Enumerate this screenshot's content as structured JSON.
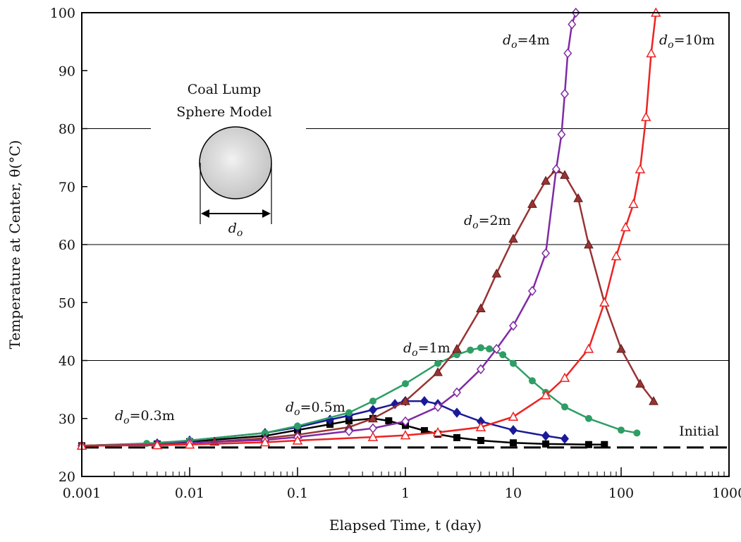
{
  "chart_data": {
    "type": "scatter",
    "title": "",
    "xlabel": "Elapsed Time, t (day)",
    "ylabel": "Temperature at Center, θ(°C)",
    "x_scale": "log",
    "xlim": [
      0.001,
      1000
    ],
    "ylim": [
      20,
      100
    ],
    "x_ticks": [
      0.001,
      0.01,
      0.1,
      1,
      10,
      100,
      1000
    ],
    "x_tick_labels": [
      "0.001",
      "0.01",
      "0.1",
      "1",
      "10",
      "100",
      "1000"
    ],
    "y_ticks": [
      20,
      30,
      40,
      50,
      60,
      70,
      80,
      90,
      100
    ],
    "y_tick_labels": [
      "20",
      "30",
      "40",
      "50",
      "60",
      "70",
      "80",
      "90",
      "100"
    ],
    "y_gridlines": [
      40,
      60,
      80
    ],
    "inset": {
      "title_line1": "Coal Lump",
      "title_line2": "Sphere Model",
      "dimension_label": "d",
      "dimension_sub": "o"
    },
    "reference_line": {
      "label": "Initial",
      "y": 25,
      "style": "dashed",
      "color": "#000000"
    },
    "series": [
      {
        "name_main": "d",
        "name_sub": "o",
        "name_rest": "=0.3m",
        "color": "#000000",
        "marker": "square",
        "x": [
          0.001,
          0.005,
          0.01,
          0.05,
          0.1,
          0.2,
          0.3,
          0.5,
          0.7,
          1,
          1.5,
          2,
          3,
          5,
          10,
          20,
          50,
          70
        ],
        "y": [
          25.3,
          25.6,
          26,
          27,
          28,
          29,
          29.6,
          30,
          29.6,
          28.8,
          27.9,
          27.3,
          26.7,
          26.2,
          25.8,
          25.6,
          25.5,
          25.5
        ]
      },
      {
        "name_main": "d",
        "name_sub": "o",
        "name_rest": "=0.5m",
        "color": "#1a1a99",
        "marker": "diamond",
        "x": [
          0.001,
          0.005,
          0.01,
          0.05,
          0.1,
          0.2,
          0.3,
          0.5,
          0.8,
          1,
          1.5,
          2,
          3,
          5,
          10,
          20,
          30
        ],
        "y": [
          25.3,
          25.7,
          26.2,
          27.5,
          28.5,
          29.8,
          30.5,
          31.5,
          32.5,
          33,
          33,
          32.5,
          31,
          29.5,
          28,
          27,
          26.5
        ]
      },
      {
        "name_main": "d",
        "name_sub": "o",
        "name_rest": "=1m",
        "color": "#2e9e66",
        "marker": "circle",
        "x": [
          0.001,
          0.004,
          0.01,
          0.05,
          0.1,
          0.3,
          0.5,
          1,
          2,
          3,
          4,
          5,
          6,
          8,
          10,
          15,
          20,
          30,
          50,
          100,
          140
        ],
        "y": [
          25.3,
          25.7,
          26.2,
          27.5,
          28.7,
          31,
          33,
          36,
          39.5,
          41,
          41.8,
          42.2,
          42,
          41,
          39.5,
          36.5,
          34.5,
          32,
          30,
          28,
          27.5
        ]
      },
      {
        "name_main": "d",
        "name_sub": "o",
        "name_rest": "=2m",
        "color": "#993333",
        "marker": "triangle-filled",
        "x": [
          0.001,
          0.005,
          0.017,
          0.05,
          0.1,
          0.3,
          0.5,
          1,
          2,
          3,
          5,
          7,
          10,
          15,
          20,
          25,
          30,
          40,
          50,
          70,
          100,
          150,
          200
        ],
        "y": [
          25.3,
          25.5,
          26,
          26.6,
          27.2,
          28.5,
          30,
          33,
          38,
          42,
          49,
          55,
          61,
          67,
          71,
          73,
          72,
          68,
          60,
          50,
          42,
          36,
          33
        ]
      },
      {
        "name_main": "d",
        "name_sub": "o",
        "name_rest": "=4m",
        "color": "#7f2aa3",
        "marker": "diamond-open",
        "x": [
          0.001,
          0.005,
          0.01,
          0.05,
          0.1,
          0.3,
          0.5,
          1,
          2,
          3,
          5,
          7,
          10,
          15,
          20,
          25,
          28,
          30,
          32,
          35,
          38
        ],
        "y": [
          25.3,
          25.5,
          25.8,
          26.3,
          26.8,
          27.8,
          28.3,
          29.5,
          32,
          34.5,
          38.5,
          42,
          46,
          52,
          58.5,
          73,
          79,
          86,
          93,
          98,
          100
        ]
      },
      {
        "name_main": "d",
        "name_sub": "o",
        "name_rest": "=10m",
        "color": "#ee2222",
        "marker": "triangle-open",
        "x": [
          0.001,
          0.005,
          0.01,
          0.05,
          0.1,
          0.5,
          1,
          2,
          5,
          10,
          20,
          30,
          50,
          70,
          90,
          110,
          130,
          150,
          170,
          190,
          210
        ],
        "y": [
          25.3,
          25.4,
          25.5,
          25.9,
          26.2,
          26.8,
          27.1,
          27.6,
          28.5,
          30.3,
          34,
          37,
          42,
          50,
          58,
          63,
          67,
          73,
          82,
          93,
          100
        ]
      }
    ]
  }
}
